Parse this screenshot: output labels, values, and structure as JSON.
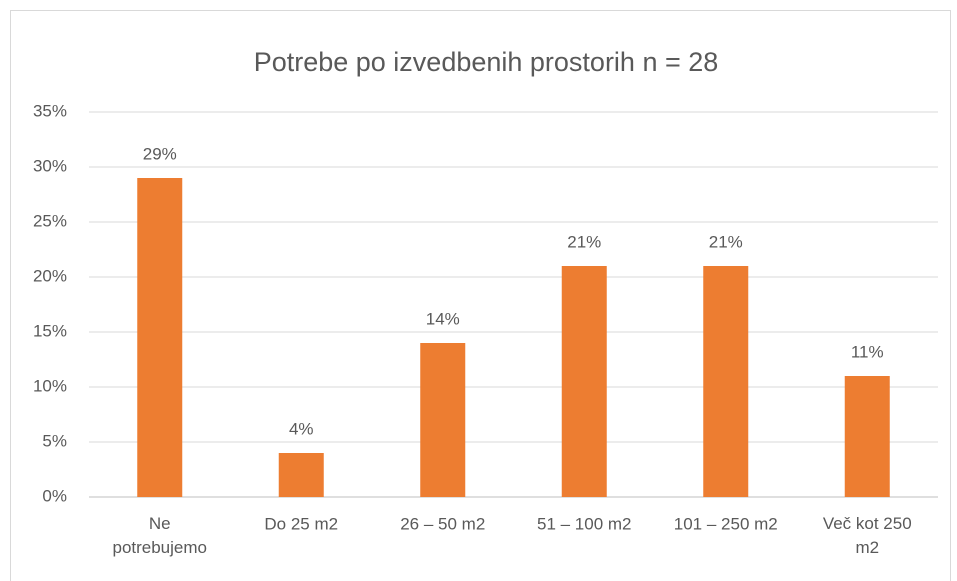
{
  "chart_data": {
    "type": "bar",
    "title": "Potrebe po izvedbenih prostorih n = 28",
    "categories": [
      "Ne potrebujemo",
      "Do 25 m2",
      "26 – 50 m2",
      "51 – 100 m2",
      "101 – 250 m2",
      "Več kot 250 m2"
    ],
    "values": [
      29,
      4,
      14,
      21,
      21,
      11
    ],
    "value_labels": [
      "29%",
      "4%",
      "14%",
      "21%",
      "21%",
      "11%"
    ],
    "color": "#ed7d31",
    "ylim": [
      0,
      35
    ],
    "yticks": [
      {
        "value": 0,
        "label": "0%"
      },
      {
        "value": 5,
        "label": "5%"
      },
      {
        "value": 10,
        "label": "10%"
      },
      {
        "value": 15,
        "label": "15%"
      },
      {
        "value": 20,
        "label": "20%"
      },
      {
        "value": 25,
        "label": "25%"
      },
      {
        "value": 30,
        "label": "30%"
      },
      {
        "value": 35,
        "label": "35%"
      }
    ],
    "grid": true
  }
}
